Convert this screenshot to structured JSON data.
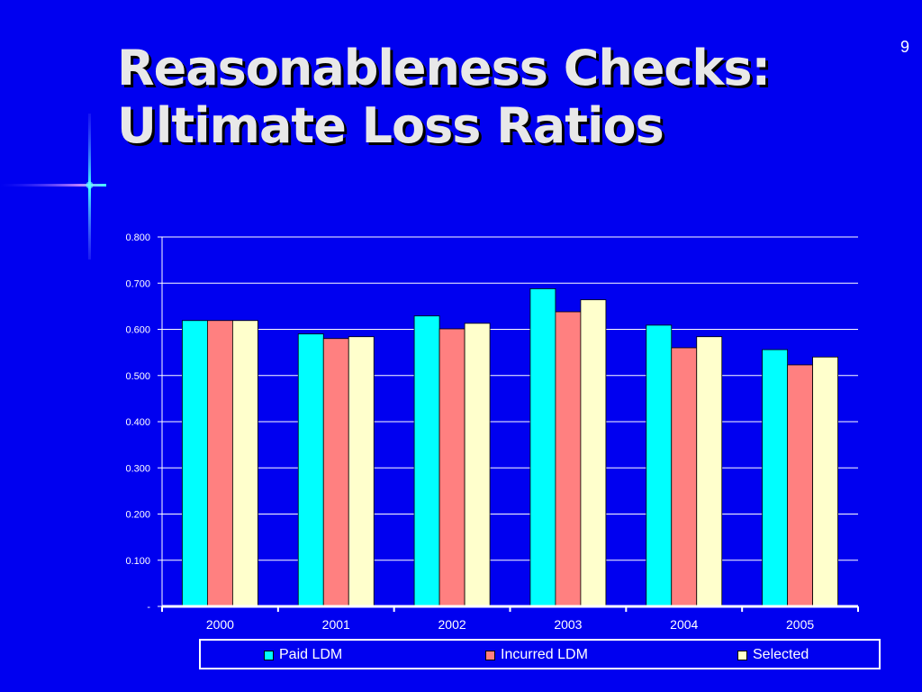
{
  "slide": {
    "number": "9",
    "title_line1": "Reasonableness Checks:",
    "title_line2": "Ultimate Loss Ratios"
  },
  "chart_data": {
    "type": "bar",
    "categories": [
      "2000",
      "2001",
      "2002",
      "2003",
      "2004",
      "2005"
    ],
    "series": [
      {
        "name": "Paid LDM",
        "color": "#00ffff",
        "values": [
          0.619,
          0.59,
          0.629,
          0.688,
          0.609,
          0.556
        ]
      },
      {
        "name": "Incurred LDM",
        "color": "#ff8080",
        "values": [
          0.619,
          0.58,
          0.601,
          0.638,
          0.56,
          0.523
        ]
      },
      {
        "name": "Selected",
        "color": "#ffffcc",
        "values": [
          0.619,
          0.584,
          0.613,
          0.664,
          0.584,
          0.54
        ]
      }
    ],
    "ylim": [
      0,
      0.8
    ],
    "yticks": [
      0,
      0.1,
      0.2,
      0.3,
      0.4,
      0.5,
      0.6,
      0.7,
      0.8
    ],
    "ytick_labels": [
      "-",
      "0.100",
      "0.200",
      "0.300",
      "0.400",
      "0.500",
      "0.600",
      "0.700",
      "0.800"
    ],
    "grid": true,
    "legend_position": "bottom"
  }
}
